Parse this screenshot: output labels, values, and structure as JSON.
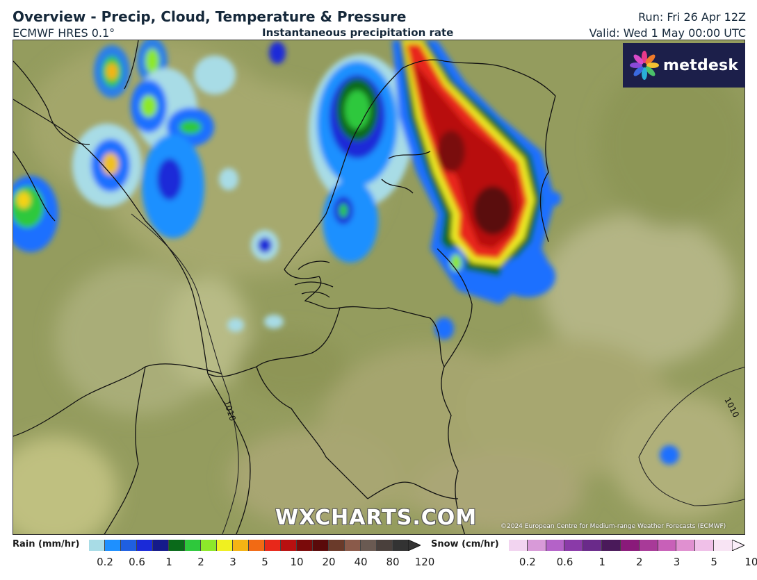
{
  "header": {
    "title": "Overview - Precip, Cloud, Temperature & Pressure",
    "model": "ECMWF HRES 0.1°",
    "product": "Instantaneous precipitation rate",
    "run": "Run: Fri 26 Apr 12Z",
    "valid": "Valid: Wed 1 May 00:00 UTC"
  },
  "map": {
    "isobars": [
      {
        "label": "1010"
      },
      {
        "label": "1010"
      }
    ]
  },
  "logo": {
    "text": "metdesk",
    "icon": "metdesk-flower-icon"
  },
  "watermark": "WXCHARTS.COM",
  "copyright": "©2024 European Centre for Medium-range Weather Forecasts (ECMWF)",
  "legend": {
    "rain": {
      "label": "Rain (mm/hr)",
      "ticks": [
        "0.2",
        "0.6",
        "1",
        "2",
        "3",
        "5",
        "10",
        "20",
        "40",
        "80",
        "120"
      ],
      "colors": [
        "#a8dce6",
        "#1e90ff",
        "#1f5fe0",
        "#1a2ad8",
        "#151a8a",
        "#0a6a1a",
        "#2ec83c",
        "#8de82a",
        "#f0f020",
        "#f5b414",
        "#f26a14",
        "#e8281a",
        "#b81010",
        "#7a0a0a",
        "#5a0a0a",
        "#6a3a2a",
        "#8a5a4a",
        "#6a5a52",
        "#4a403c",
        "#333333"
      ]
    },
    "snow": {
      "label": "Snow (cm/hr)",
      "ticks": [
        "0.2",
        "0.6",
        "1",
        "2",
        "3",
        "5",
        "10"
      ],
      "colors": [
        "#f2d4f0",
        "#d89ad8",
        "#b462c8",
        "#8a3aa8",
        "#6a2a8a",
        "#4a1a5a",
        "#8a1a7a",
        "#a83a98",
        "#c860b8",
        "#e090d0",
        "#f0c0e8",
        "#f8e4f4"
      ]
    }
  }
}
